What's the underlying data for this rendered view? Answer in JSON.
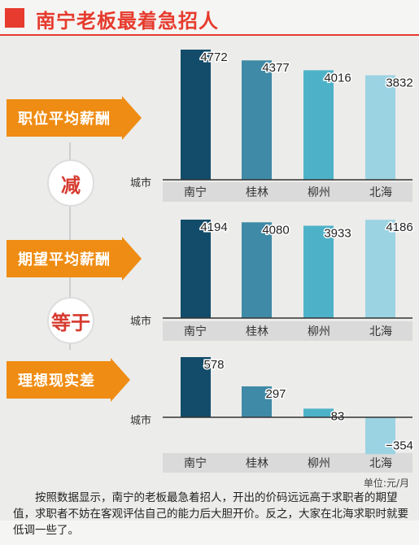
{
  "header": {
    "title": "南宁老板最着急招人"
  },
  "sections": [
    {
      "label": "职位平均薪酬"
    },
    {
      "label": "期望平均薪酬"
    },
    {
      "label": "理想现实差"
    }
  ],
  "operators": [
    "减",
    "等于"
  ],
  "chart_data": [
    {
      "type": "bar",
      "title": "职位平均薪酬",
      "xlabel": "城市",
      "categories": [
        "南宁",
        "桂林",
        "柳州",
        "北海"
      ],
      "values": [
        4772,
        4377,
        4016,
        3832
      ],
      "colors": [
        "#124c6a",
        "#3f8aa6",
        "#4db2c8",
        "#9bd3e3"
      ]
    },
    {
      "type": "bar",
      "title": "期望平均薪酬",
      "xlabel": "城市",
      "categories": [
        "南宁",
        "桂林",
        "柳州",
        "北海"
      ],
      "values": [
        4194,
        4080,
        3933,
        4186
      ],
      "colors": [
        "#124c6a",
        "#3f8aa6",
        "#4db2c8",
        "#9bd3e3"
      ]
    },
    {
      "type": "bar",
      "title": "理想现实差",
      "xlabel": "城市",
      "categories": [
        "南宁",
        "桂林",
        "柳州",
        "北海"
      ],
      "values": [
        578,
        297,
        83,
        -354
      ],
      "colors": [
        "#124c6a",
        "#3f8aa6",
        "#4db2c8",
        "#9bd3e3"
      ]
    }
  ],
  "unit_label": "单位:元/月",
  "footer_text": "按照数据显示，南宁的老板最急着招人，开出的价码远远高于求职者的期望值，求职者不妨在客观评估自己的能力后大胆开价。反之，大家在北海求职时就要低调一些了。"
}
